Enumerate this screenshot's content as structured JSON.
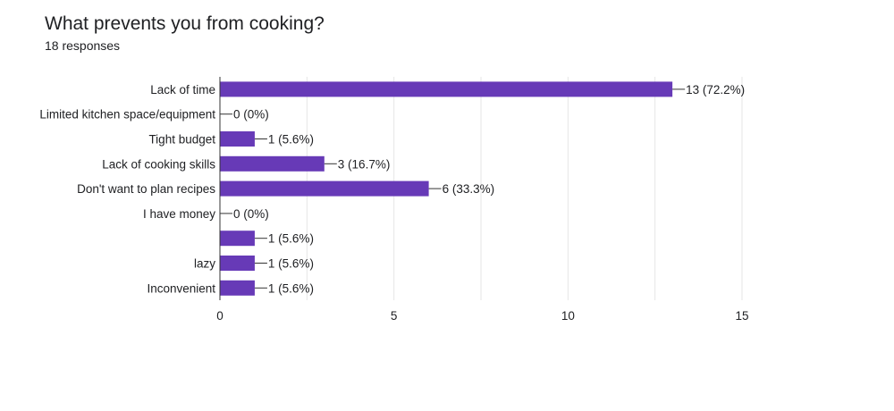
{
  "question": {
    "title": "What prevents you from cooking?",
    "responses": "18 responses"
  },
  "colors": {
    "bar": "#673ab7",
    "grid": "#e6e6e6",
    "axis": "#333333",
    "text": "#202124"
  },
  "chart_data": {
    "type": "bar",
    "orientation": "horizontal",
    "categories": [
      "Lack of time",
      "Limited kitchen space/equipment",
      "Tight budget",
      "Lack of cooking skills",
      "Don't want to plan recipes",
      "I have money",
      "",
      "lazy",
      "Inconvenient"
    ],
    "values": [
      13,
      0,
      1,
      3,
      6,
      0,
      1,
      1,
      1
    ],
    "data_labels": [
      "13 (72.2%)",
      "0 (0%)",
      "1 (5.6%)",
      "3 (16.7%)",
      "6 (33.3%)",
      "0 (0%)",
      "1 (5.6%)",
      "1 (5.6%)",
      "1 (5.6%)"
    ],
    "xlim": [
      0,
      15
    ],
    "xticks": [
      0,
      5,
      10,
      15
    ],
    "xtick_labels": [
      "0",
      "5",
      "10",
      "15"
    ],
    "grid": true,
    "legend": "none",
    "title": "",
    "xlabel": "",
    "ylabel": ""
  }
}
